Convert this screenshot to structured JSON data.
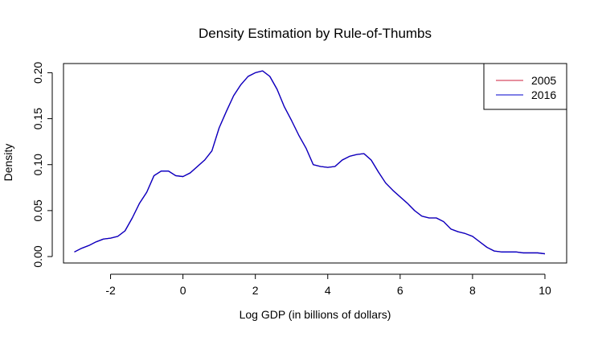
{
  "chart_data": {
    "type": "line",
    "title": "Density Estimation by Rule-of-Thumbs",
    "xlabel": "Log GDP (in billions of dollars)",
    "ylabel": "Density",
    "xlim": [
      -3.3,
      10.6
    ],
    "ylim": [
      -0.007,
      0.21
    ],
    "x_ticks": [
      -2,
      0,
      2,
      4,
      6,
      8,
      10
    ],
    "x_tick_labels": [
      "-2",
      "0",
      "2",
      "4",
      "6",
      "8",
      "10"
    ],
    "y_ticks": [
      0.0,
      0.05,
      0.1,
      0.15,
      0.2
    ],
    "y_tick_labels": [
      "0.00",
      "0.05",
      "0.10",
      "0.15",
      "0.20"
    ],
    "grid": false,
    "legend_position": "top-right",
    "series": [
      {
        "name": "2005",
        "color": "#cc1f3c",
        "x": [
          -3.0,
          -2.8,
          -2.6,
          -2.4,
          -2.2,
          -2.0,
          -1.8,
          -1.6,
          -1.4,
          -1.2,
          -1.0,
          -0.8,
          -0.6,
          -0.4,
          -0.2,
          0.0,
          0.2,
          0.4,
          0.6,
          0.8,
          1.0,
          1.2,
          1.4,
          1.6,
          1.8,
          2.0,
          2.2,
          2.4,
          2.6,
          2.8,
          3.0,
          3.2,
          3.4,
          3.6,
          3.8,
          4.0,
          4.2,
          4.4,
          4.6,
          4.8,
          5.0,
          5.2,
          5.4,
          5.6,
          5.8,
          6.0,
          6.2,
          6.4,
          6.6,
          6.8,
          7.0,
          7.2,
          7.4,
          7.6,
          7.8,
          8.0,
          8.2,
          8.4,
          8.6,
          8.8,
          9.0,
          9.2,
          9.4,
          9.6,
          9.8,
          10.0
        ],
        "y": [
          0.005,
          0.009,
          0.012,
          0.016,
          0.019,
          0.02,
          0.022,
          0.028,
          0.042,
          0.058,
          0.07,
          0.088,
          0.093,
          0.093,
          0.088,
          0.087,
          0.091,
          0.098,
          0.105,
          0.115,
          0.14,
          0.158,
          0.175,
          0.187,
          0.196,
          0.2,
          0.202,
          0.196,
          0.182,
          0.163,
          0.148,
          0.132,
          0.118,
          0.1,
          0.098,
          0.097,
          0.098,
          0.105,
          0.109,
          0.111,
          0.112,
          0.105,
          0.092,
          0.08,
          0.072,
          0.065,
          0.058,
          0.05,
          0.044,
          0.042,
          0.042,
          0.038,
          0.03,
          0.027,
          0.025,
          0.022,
          0.016,
          0.01,
          0.006,
          0.005,
          0.005,
          0.005,
          0.004,
          0.004,
          0.004,
          0.003
        ]
      },
      {
        "name": "2016",
        "color": "#0000cc",
        "x": [
          -3.0,
          -2.8,
          -2.6,
          -2.4,
          -2.2,
          -2.0,
          -1.8,
          -1.6,
          -1.4,
          -1.2,
          -1.0,
          -0.8,
          -0.6,
          -0.4,
          -0.2,
          0.0,
          0.2,
          0.4,
          0.6,
          0.8,
          1.0,
          1.2,
          1.4,
          1.6,
          1.8,
          2.0,
          2.2,
          2.4,
          2.6,
          2.8,
          3.0,
          3.2,
          3.4,
          3.6,
          3.8,
          4.0,
          4.2,
          4.4,
          4.6,
          4.8,
          5.0,
          5.2,
          5.4,
          5.6,
          5.8,
          6.0,
          6.2,
          6.4,
          6.6,
          6.8,
          7.0,
          7.2,
          7.4,
          7.6,
          7.8,
          8.0,
          8.2,
          8.4,
          8.6,
          8.8,
          9.0,
          9.2,
          9.4,
          9.6,
          9.8,
          10.0
        ],
        "y": [
          0.005,
          0.009,
          0.012,
          0.016,
          0.019,
          0.02,
          0.022,
          0.028,
          0.042,
          0.058,
          0.07,
          0.088,
          0.093,
          0.093,
          0.088,
          0.087,
          0.091,
          0.098,
          0.105,
          0.115,
          0.14,
          0.158,
          0.175,
          0.187,
          0.196,
          0.2,
          0.202,
          0.196,
          0.182,
          0.163,
          0.148,
          0.132,
          0.118,
          0.1,
          0.098,
          0.097,
          0.098,
          0.105,
          0.109,
          0.111,
          0.112,
          0.105,
          0.092,
          0.08,
          0.072,
          0.065,
          0.058,
          0.05,
          0.044,
          0.042,
          0.042,
          0.038,
          0.03,
          0.027,
          0.025,
          0.022,
          0.016,
          0.01,
          0.006,
          0.005,
          0.005,
          0.005,
          0.004,
          0.004,
          0.004,
          0.003
        ]
      }
    ]
  }
}
